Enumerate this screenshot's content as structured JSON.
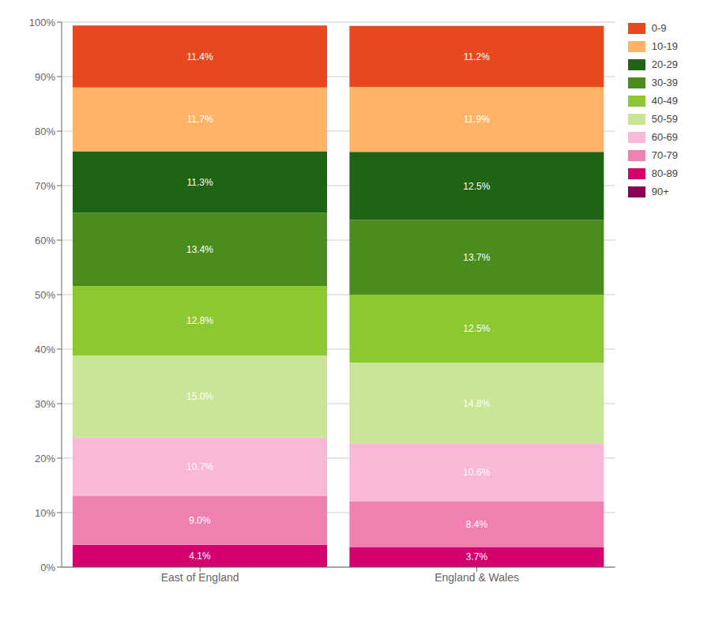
{
  "chart_data": {
    "type": "bar",
    "stacked": true,
    "data_labels": true,
    "grid": true,
    "legend": "right",
    "categories": [
      "East of England",
      "England & Wales"
    ],
    "ylim": [
      0,
      100
    ],
    "yticks": [
      {
        "value": 0,
        "label": "0%"
      },
      {
        "value": 10,
        "label": "10%"
      },
      {
        "value": 20,
        "label": "20%"
      },
      {
        "value": 30,
        "label": "30%"
      },
      {
        "value": 40,
        "label": "40%"
      },
      {
        "value": 50,
        "label": "50%"
      },
      {
        "value": 60,
        "label": "60%"
      },
      {
        "value": 70,
        "label": "70%"
      },
      {
        "value": 80,
        "label": "80%"
      },
      {
        "value": 90,
        "label": "90%"
      },
      {
        "value": 100,
        "label": "100%"
      }
    ],
    "series": [
      {
        "name": "90+",
        "color": "#8b0057",
        "values": [
          0.0,
          0.0
        ],
        "value_labels": [
          null,
          null
        ]
      },
      {
        "name": "80-89",
        "color": "#d4006e",
        "values": [
          4.1,
          3.7
        ],
        "value_labels": [
          "4.1%",
          "3.7%"
        ]
      },
      {
        "name": "70-79",
        "color": "#f080b0",
        "values": [
          9.0,
          8.4
        ],
        "value_labels": [
          "9.0%",
          "8.4%"
        ]
      },
      {
        "name": "60-69",
        "color": "#f9b8d8",
        "values": [
          10.7,
          10.6
        ],
        "value_labels": [
          "10.7%",
          "10.6%"
        ]
      },
      {
        "name": "50-59",
        "color": "#c8e696",
        "values": [
          15.0,
          14.8
        ],
        "value_labels": [
          "15.0%",
          "14.8%"
        ]
      },
      {
        "name": "40-49",
        "color": "#8cc832",
        "values": [
          12.8,
          12.5
        ],
        "value_labels": [
          "12.8%",
          "12.5%"
        ]
      },
      {
        "name": "30-39",
        "color": "#4a8c1e",
        "values": [
          13.4,
          13.7
        ],
        "value_labels": [
          "13.4%",
          "13.7%"
        ]
      },
      {
        "name": "20-29",
        "color": "#1e6414",
        "values": [
          11.3,
          12.5
        ],
        "value_labels": [
          "11.3%",
          "12.5%"
        ]
      },
      {
        "name": "10-19",
        "color": "#ffb366",
        "values": [
          11.7,
          11.9
        ],
        "value_labels": [
          "11.7%",
          "11.9%"
        ]
      },
      {
        "name": "0-9",
        "color": "#e84820",
        "values": [
          11.4,
          11.2
        ],
        "value_labels": [
          "11.4%",
          "11.2%"
        ]
      }
    ]
  }
}
